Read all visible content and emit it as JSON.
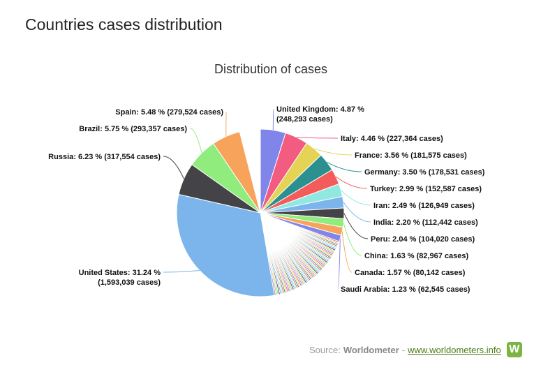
{
  "page": {
    "title": "Countries cases distribution"
  },
  "source": {
    "prefix": "Source:",
    "brand": "Worldometer",
    "separator": "-",
    "link": "www.worldometers.info",
    "logo_letter": "W"
  },
  "chart_data": {
    "type": "pie",
    "title": "Distribution of cases",
    "slices": [
      {
        "name": "United States",
        "percent": 31.24,
        "cases": "1,593,039",
        "color": "#7cb5ec",
        "label": "United States: 31.24 %|(1,593,039 cases)"
      },
      {
        "name": "Russia",
        "percent": 6.23,
        "cases": "317,554",
        "color": "#434348",
        "label": "Russia: 6.23 % (317,554 cases)"
      },
      {
        "name": "Brazil",
        "percent": 5.75,
        "cases": "293,357",
        "color": "#90ed7d",
        "label": "Brazil: 5.75 % (293,357 cases)"
      },
      {
        "name": "Spain",
        "percent": 5.48,
        "cases": "279,524",
        "color": "#f7a35c",
        "label": "Spain: 5.48 % (279,524 cases)"
      },
      {
        "name": "United Kingdom",
        "percent": 4.87,
        "cases": "248,293",
        "color": "#8085e9",
        "label": "United Kingdom: 4.87 %|(248,293 cases)"
      },
      {
        "name": "Italy",
        "percent": 4.46,
        "cases": "227,364",
        "color": "#f15c80",
        "label": "Italy: 4.46 % (227,364 cases)"
      },
      {
        "name": "France",
        "percent": 3.56,
        "cases": "181,575",
        "color": "#e4d354",
        "label": "France: 3.56 % (181,575 cases)"
      },
      {
        "name": "Germany",
        "percent": 3.5,
        "cases": "178,531",
        "color": "#2b908f",
        "label": "Germany: 3.50 % (178,531 cases)"
      },
      {
        "name": "Turkey",
        "percent": 2.99,
        "cases": "152,587",
        "color": "#f45b5b",
        "label": "Turkey: 2.99 % (152,587 cases)"
      },
      {
        "name": "Iran",
        "percent": 2.49,
        "cases": "126,949",
        "color": "#91e8e1",
        "label": "Iran: 2.49 % (126,949 cases)"
      },
      {
        "name": "India",
        "percent": 2.2,
        "cases": "112,442",
        "color": "#7cb5ec",
        "label": "India: 2.20 % (112,442 cases)"
      },
      {
        "name": "Peru",
        "percent": 2.04,
        "cases": "104,020",
        "color": "#434348",
        "label": "Peru: 2.04 % (104,020 cases)"
      },
      {
        "name": "China",
        "percent": 1.63,
        "cases": "82,967",
        "color": "#90ed7d",
        "label": "China: 1.63 % (82,967 cases)"
      },
      {
        "name": "Canada",
        "percent": 1.57,
        "cases": "80,142",
        "color": "#f7a35c",
        "label": "Canada: 1.57 % (80,142 cases)"
      },
      {
        "name": "Saudi Arabia",
        "percent": 1.23,
        "cases": "62,545",
        "color": "#8085e9",
        "label": "Saudi Arabia: 1.23 % (62,545 cases)"
      }
    ],
    "remaining_percent": 16.77,
    "remaining_colors": [
      "#f15c80",
      "#e4d354",
      "#2b908f",
      "#f45b5b",
      "#91e8e1",
      "#7cb5ec",
      "#434348",
      "#90ed7d",
      "#f7a35c",
      "#8085e9"
    ]
  }
}
